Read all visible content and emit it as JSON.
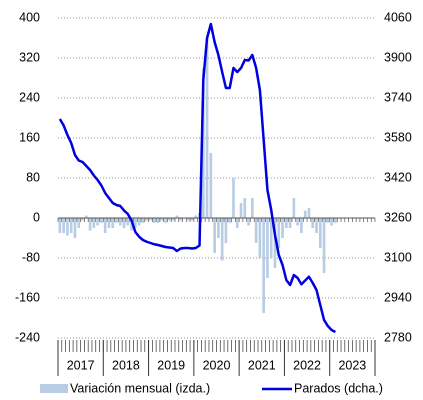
{
  "chart_data": {
    "type": "bar-line",
    "years": [
      "2017",
      "2018",
      "2019",
      "2020",
      "2021",
      "2022",
      "2023"
    ],
    "series": [
      {
        "name": "Variación mensual (izda.)",
        "color": "#b8cce4",
        "type": "bar",
        "values": [
          -30,
          -30,
          -35,
          -30,
          -40,
          -20,
          -5,
          5,
          -25,
          -20,
          -15,
          -10,
          -30,
          -20,
          -20,
          -10,
          -15,
          -20,
          -15,
          -25,
          -20,
          -15,
          -10,
          -5,
          -5,
          -10,
          -10,
          -5,
          -10,
          -5,
          -5,
          5,
          -5,
          0,
          -5,
          -5,
          5,
          10,
          300,
          360,
          130,
          -70,
          -40,
          -85,
          -50,
          -10,
          80,
          -20,
          30,
          40,
          -15,
          40,
          -50,
          -80,
          -190,
          -120,
          -80,
          -100,
          -60,
          -40,
          -20,
          -20,
          40,
          -15,
          -30,
          15,
          20,
          -20,
          -30,
          -60,
          -110,
          -10,
          -15,
          -10,
          null,
          null,
          null,
          null,
          null,
          null,
          null,
          null,
          null,
          null
        ]
      },
      {
        "name": "Parados (dcha.)",
        "color": "#0000e0",
        "type": "line",
        "axis": "y2",
        "values": [
          3656,
          3630,
          3592,
          3560,
          3512,
          3490,
          3484,
          3468,
          3452,
          3430,
          3412,
          3390,
          3360,
          3340,
          3320,
          3312,
          3308,
          3290,
          3276,
          3250,
          3204,
          3185,
          3172,
          3165,
          3160,
          3155,
          3152,
          3148,
          3144,
          3142,
          3140,
          3128,
          3138,
          3140,
          3140,
          3138,
          3140,
          3150,
          3812,
          3980,
          4036,
          3964,
          3912,
          3844,
          3780,
          3780,
          3860,
          3844,
          3860,
          3892,
          3890,
          3912,
          3860,
          3772,
          3572,
          3372,
          3292,
          3192,
          3112,
          3072,
          3012,
          2992,
          3032,
          3020,
          2995,
          3010,
          3025,
          3000,
          2972,
          2912,
          2852,
          2828,
          2812,
          2804,
          null,
          null,
          null,
          null,
          null,
          null,
          null,
          null,
          null,
          null
        ]
      }
    ],
    "ylim": [
      -240,
      400
    ],
    "yticks": [
      -240,
      -160,
      -80,
      0,
      80,
      160,
      240,
      320,
      400
    ],
    "y2lim": [
      2780,
      4060
    ],
    "y2ticks": [
      2780,
      2940,
      3100,
      3260,
      3420,
      3580,
      3740,
      3900,
      4060
    ],
    "grid": true
  }
}
